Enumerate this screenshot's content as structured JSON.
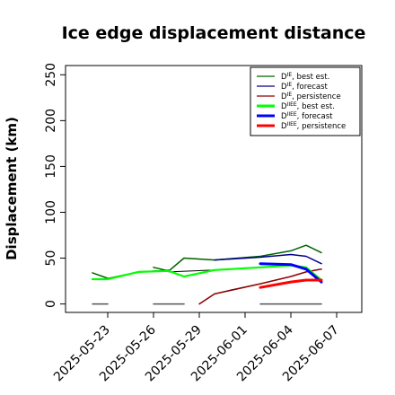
{
  "chart_data": {
    "type": "line",
    "title": "Ice edge displacement distance",
    "ylabel": "Displacement (km)",
    "xlabel": "",
    "ylim": [
      0,
      260
    ],
    "yticks": [
      0,
      50,
      100,
      150,
      200,
      250
    ],
    "xlim": [
      "2025-05-21",
      "2025-06-08"
    ],
    "xticks": [
      {
        "date": "2025-05-23",
        "label": "2025-05-23",
        "color": "#000000"
      },
      {
        "date": "2025-05-26",
        "label": "2025-05-26",
        "color": "#000000"
      },
      {
        "date": "2025-05-29",
        "label": "2025-05-29",
        "color": "#228B22"
      },
      {
        "date": "2025-06-01",
        "label": "2025-06-01",
        "color": "#000000"
      },
      {
        "date": "2025-06-04",
        "label": "2025-06-04",
        "color": "#000000"
      },
      {
        "date": "2025-06-07",
        "label": "2025-06-07",
        "color": "#000000"
      }
    ],
    "grid": false,
    "legend_position": "top-right",
    "legend": [
      {
        "main": "D",
        "sup": "IE",
        "suffix": ", best est.",
        "color": "#006400",
        "width": 1.3
      },
      {
        "main": "D",
        "sup": "IE",
        "suffix": ", forecast",
        "color": "#00008B",
        "width": 1.3
      },
      {
        "main": "D",
        "sup": "IE",
        "suffix": ", persistence",
        "color": "#8B0000",
        "width": 1.3
      },
      {
        "main": "D",
        "sup": "IIEE",
        "suffix": ", best est.",
        "color": "#00FF00",
        "width": 3
      },
      {
        "main": "D",
        "sup": "IIEE",
        "suffix": ", forecast",
        "color": "#0000FF",
        "width": 3
      },
      {
        "main": "D",
        "sup": "IIEE",
        "suffix": ", persistence",
        "color": "#FF0000",
        "width": 3
      }
    ],
    "series": [
      {
        "color": "#000000",
        "width": 1,
        "points": [
          [
            "2025-05-26",
            40
          ],
          [
            "2025-05-27",
            36
          ],
          [
            "2025-05-28",
            50
          ],
          [
            "2025-05-30",
            48
          ],
          [
            "2025-06-02",
            52
          ]
        ]
      },
      {
        "color": "#000000",
        "width": 1,
        "points": [
          [
            "2025-05-23",
            28
          ],
          [
            "2025-05-25",
            35
          ],
          [
            "2025-05-27",
            37
          ]
        ]
      },
      {
        "color": "#000000",
        "width": 1,
        "points": [
          [
            "2025-05-29",
            0
          ],
          [
            "2025-05-30",
            11
          ],
          [
            "2025-05-31",
            15
          ],
          [
            "2025-06-02",
            22
          ]
        ]
      },
      {
        "color": "#000000",
        "width": 1,
        "points": [
          [
            "2025-05-27",
            35
          ],
          [
            "2025-05-30",
            37
          ],
          [
            "2025-06-02",
            40
          ]
        ]
      },
      {
        "color": "#006400",
        "width": 1.5,
        "points": [
          [
            "2025-05-22",
            34
          ],
          [
            "2025-05-23",
            28
          ]
        ]
      },
      {
        "color": "#006400",
        "width": 1.5,
        "points": [
          [
            "2025-05-26",
            40
          ],
          [
            "2025-05-27",
            36
          ],
          [
            "2025-05-28",
            50
          ],
          [
            "2025-05-30",
            48
          ],
          [
            "2025-06-02",
            52
          ],
          [
            "2025-06-04",
            58
          ],
          [
            "2025-06-05",
            64
          ],
          [
            "2025-06-06",
            56
          ]
        ]
      },
      {
        "color": "#00008B",
        "width": 1.5,
        "points": [
          [
            "2025-05-30",
            48
          ],
          [
            "2025-06-02",
            51
          ],
          [
            "2025-06-04",
            54
          ],
          [
            "2025-06-05",
            52
          ],
          [
            "2025-06-06",
            44
          ]
        ]
      },
      {
        "color": "#8B0000",
        "width": 1.5,
        "points": [
          [
            "2025-05-29",
            0
          ],
          [
            "2025-05-30",
            11
          ],
          [
            "2025-06-02",
            22
          ],
          [
            "2025-06-04",
            30
          ],
          [
            "2025-06-05",
            35
          ],
          [
            "2025-06-06",
            38
          ]
        ]
      },
      {
        "color": "#00FF00",
        "width": 2.2,
        "points": [
          [
            "2025-05-22",
            27
          ],
          [
            "2025-05-23",
            27
          ],
          [
            "2025-05-25",
            35
          ],
          [
            "2025-05-27",
            36
          ],
          [
            "2025-05-28",
            30
          ],
          [
            "2025-05-30",
            37
          ],
          [
            "2025-06-02",
            40
          ],
          [
            "2025-06-04",
            42
          ],
          [
            "2025-06-05",
            40
          ],
          [
            "2025-06-06",
            26
          ]
        ]
      },
      {
        "color": "#0000FF",
        "width": 3,
        "points": [
          [
            "2025-06-02",
            44
          ],
          [
            "2025-06-04",
            43
          ],
          [
            "2025-06-05",
            38
          ],
          [
            "2025-06-06",
            24
          ]
        ]
      },
      {
        "color": "#FF0000",
        "width": 3,
        "points": [
          [
            "2025-06-02",
            18
          ],
          [
            "2025-06-04",
            24
          ],
          [
            "2025-06-05",
            26
          ],
          [
            "2025-06-06",
            26
          ]
        ]
      },
      {
        "color": "#555555",
        "width": 1.5,
        "points": [
          [
            "2025-05-22",
            0
          ],
          [
            "2025-05-23",
            0
          ]
        ]
      },
      {
        "color": "#555555",
        "width": 1.5,
        "points": [
          [
            "2025-05-26",
            0
          ],
          [
            "2025-05-28",
            0
          ]
        ]
      },
      {
        "color": "#555555",
        "width": 1.5,
        "points": [
          [
            "2025-06-02",
            0
          ],
          [
            "2025-06-06",
            0
          ]
        ]
      }
    ]
  }
}
